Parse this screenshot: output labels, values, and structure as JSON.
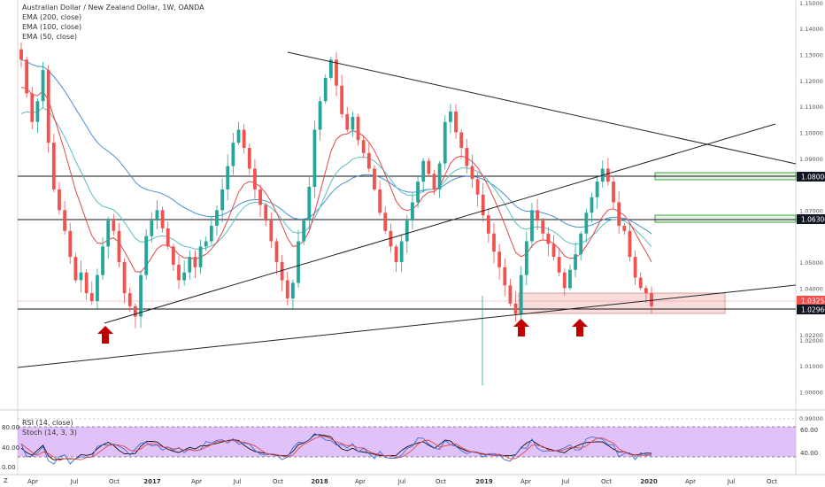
{
  "legend": {
    "title": "Australian Dollar / New Zealand Dollar, 1W, OANDA",
    "indicators": [
      "EMA (200, close)",
      "EMA (100, close)",
      "EMA (50, close)"
    ]
  },
  "oscillator_legend": {
    "rsi": "RSI (14, close)",
    "stoch": "Stoch (14, 3, 3)"
  },
  "colors": {
    "up": "#26a69a",
    "down": "#ef5350",
    "ema200": "#4a8fd1",
    "ema100": "#5bbfc0",
    "ema50": "#e04848",
    "zone_fill": "#f5c6c6",
    "zone_border": "#d9a0a0",
    "green_zone": "#43a047",
    "arrow": "#c00000",
    "osc_band": "#d3a8f5",
    "trendline": "#222222"
  },
  "axis": {
    "corner_label": "Z",
    "price_ticks": [
      "1.15000",
      "1.14000",
      "1.13000",
      "1.12000",
      "1.11000",
      "1.10000",
      "1.09000",
      "1.07000",
      "1.05000",
      "1.04000",
      "1.02200",
      "1.02000",
      "1.01000",
      "1.00000",
      "0.99000"
    ],
    "time_ticks": [
      "Apr",
      "Jul",
      "Oct",
      "2017",
      "Apr",
      "Jul",
      "Oct",
      "2018",
      "Apr",
      "Jul",
      "Oct",
      "2019",
      "Apr",
      "Jul",
      "Oct",
      "2020",
      "Apr",
      "Jul",
      "Oct"
    ],
    "osc_left_ticks": [
      "80.00",
      "40.00",
      "0.00"
    ],
    "osc_right_ticks": [
      "60.00",
      "40.00"
    ]
  },
  "price_labels": [
    {
      "text": "1.08000",
      "style": "dark"
    },
    {
      "text": "1.06300",
      "style": "dark"
    },
    {
      "text": "1.03258",
      "style": "red"
    },
    {
      "text": "1.02966",
      "style": "dark"
    }
  ],
  "chart_data": {
    "type": "candlestick",
    "title": "Australian Dollar / New Zealand Dollar, 1W, OANDA",
    "ylim": [
      0.993,
      1.151
    ],
    "horizontal_levels": [
      1.08,
      1.063,
      1.03258,
      1.02966
    ],
    "support_zone": [
      1.02966,
      1.0345
    ],
    "close_path": [
      1.128,
      1.115,
      1.104,
      1.112,
      1.124,
      1.096,
      1.078,
      1.07,
      1.062,
      1.052,
      1.043,
      1.046,
      1.038,
      1.035,
      1.045,
      1.056,
      1.066,
      1.062,
      1.05,
      1.038,
      1.033,
      1.029,
      1.045,
      1.06,
      1.066,
      1.07,
      1.063,
      1.056,
      1.049,
      1.043,
      1.046,
      1.052,
      1.048,
      1.056,
      1.058,
      1.064,
      1.07,
      1.078,
      1.087,
      1.096,
      1.101,
      1.094,
      1.086,
      1.078,
      1.072,
      1.066,
      1.058,
      1.05,
      1.043,
      1.036,
      1.042,
      1.058,
      1.066,
      1.079,
      1.101,
      1.112,
      1.121,
      1.128,
      1.118,
      1.107,
      1.101,
      1.106,
      1.097,
      1.092,
      1.086,
      1.078,
      1.069,
      1.062,
      1.056,
      1.05,
      1.058,
      1.066,
      1.073,
      1.081,
      1.089,
      1.084,
      1.078,
      1.088,
      1.104,
      1.108,
      1.1,
      1.094,
      1.087,
      1.082,
      1.076,
      1.068,
      1.061,
      1.054,
      1.048,
      1.041,
      1.034,
      1.03,
      1.045,
      1.058,
      1.07,
      1.066,
      1.061,
      1.057,
      1.052,
      1.046,
      1.04,
      1.047,
      1.053,
      1.061,
      1.069,
      1.075,
      1.081,
      1.086,
      1.081,
      1.073,
      1.064,
      1.062,
      1.052,
      1.044,
      1.04,
      1.038,
      1.033
    ],
    "arrows_at_price": [
      1.022,
      1.022,
      1.022
    ]
  }
}
